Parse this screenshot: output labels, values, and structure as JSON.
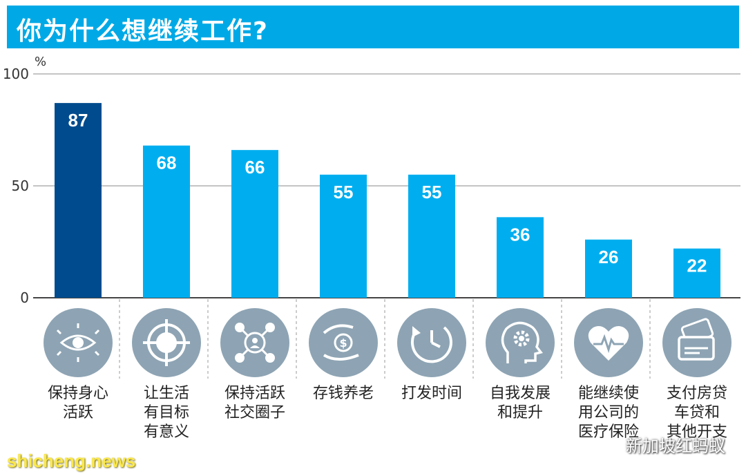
{
  "title": "你为什么想继续工作?",
  "chart_data": {
    "type": "bar",
    "unit_label": "%",
    "ylim": [
      0,
      100
    ],
    "yticks": [
      0,
      50,
      100
    ],
    "grid": true,
    "categories": [
      [
        "保持身心",
        "活跃"
      ],
      [
        "让生活",
        "有目标",
        "有意义"
      ],
      [
        "保持活跃",
        "社交圈子"
      ],
      [
        "存钱养老"
      ],
      [
        "打发时间"
      ],
      [
        "自我发展",
        "和提升"
      ],
      [
        "能继续使",
        "用公司的",
        "医疗保险"
      ],
      [
        "支付房贷",
        "车贷和",
        "其他开支"
      ]
    ],
    "values": [
      87,
      68,
      66,
      55,
      55,
      36,
      26,
      22
    ],
    "bar_colors": [
      "#004b8d",
      "#00aeef",
      "#00aeef",
      "#00aeef",
      "#00aeef",
      "#00aeef",
      "#00aeef",
      "#00aeef"
    ],
    "icons": [
      "eye-icon",
      "target-icon",
      "network-icon",
      "money-hands-icon",
      "clock-icon",
      "head-gear-icon",
      "heart-pulse-icon",
      "credit-card-icon"
    ]
  },
  "colors": {
    "title_bg": "#00a9e6",
    "icon_bg": "#8ea4b4",
    "grid": "#b0b0b0"
  },
  "watermarks": {
    "left": "shicheng.news",
    "right": "新加坡红蚂蚁"
  }
}
